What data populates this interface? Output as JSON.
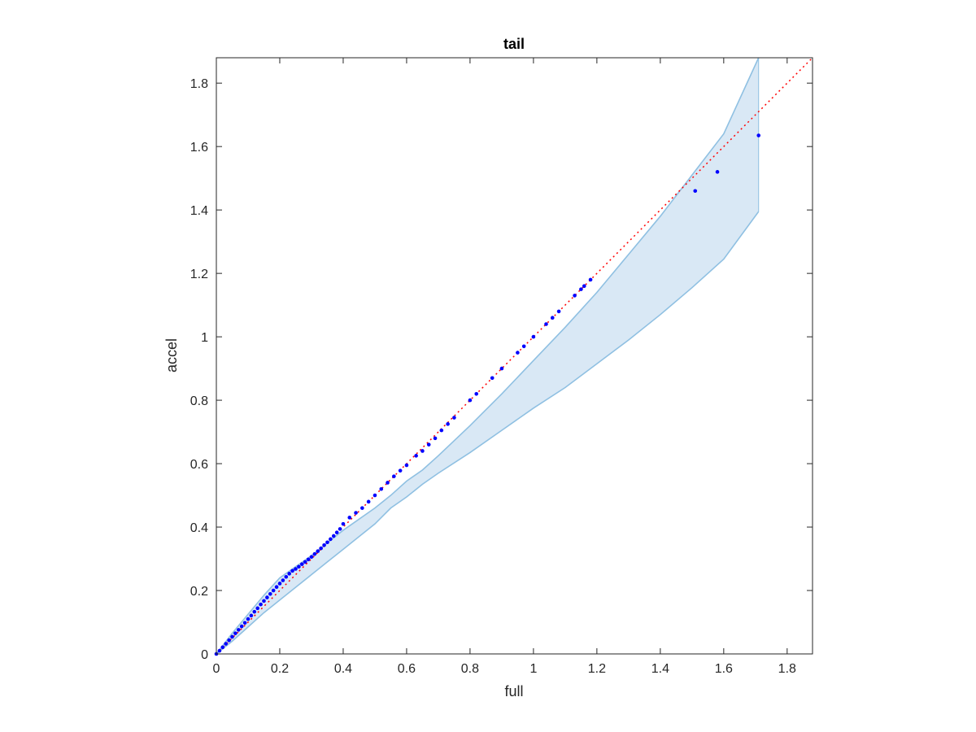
{
  "chart_data": {
    "type": "scatter",
    "title": "tail",
    "xlabel": "full",
    "ylabel": "accel",
    "xlim": [
      0,
      1.88
    ],
    "ylim": [
      0,
      1.88
    ],
    "xticks": [
      0,
      0.2,
      0.4,
      0.6,
      0.8,
      1,
      1.2,
      1.4,
      1.6,
      1.8
    ],
    "yticks": [
      0,
      0.2,
      0.4,
      0.6,
      0.8,
      1,
      1.2,
      1.4,
      1.6,
      1.8
    ],
    "xtick_labels": [
      "0",
      "0.2",
      "0.4",
      "0.6",
      "0.8",
      "1",
      "1.2",
      "1.4",
      "1.6",
      "1.8"
    ],
    "ytick_labels": [
      "0",
      "0.2",
      "0.4",
      "0.6",
      "0.8",
      "1",
      "1.2",
      "1.4",
      "1.6",
      "1.8"
    ],
    "grid": false,
    "reference_line": {
      "x": [
        0,
        1.88
      ],
      "y": [
        0,
        1.88
      ],
      "color": "#ff0000",
      "style": "dotted"
    },
    "confidence_band": {
      "color": "#d9e8f5",
      "edge_color": "#8fc0e2",
      "x": [
        0,
        0.05,
        0.1,
        0.15,
        0.2,
        0.25,
        0.3,
        0.35,
        0.4,
        0.45,
        0.5,
        0.55,
        0.6,
        0.65,
        0.7,
        0.8,
        0.9,
        1.0,
        1.1,
        1.2,
        1.3,
        1.4,
        1.5,
        1.6,
        1.71
      ],
      "upper": [
        0,
        0.065,
        0.125,
        0.185,
        0.24,
        0.275,
        0.31,
        0.35,
        0.39,
        0.425,
        0.46,
        0.5,
        0.545,
        0.58,
        0.625,
        0.72,
        0.82,
        0.925,
        1.03,
        1.14,
        1.26,
        1.38,
        1.51,
        1.64,
        1.88
      ],
      "lower": [
        0,
        0.04,
        0.085,
        0.13,
        0.17,
        0.21,
        0.25,
        0.29,
        0.33,
        0.37,
        0.41,
        0.46,
        0.495,
        0.535,
        0.57,
        0.635,
        0.705,
        0.775,
        0.84,
        0.915,
        0.99,
        1.07,
        1.155,
        1.245,
        1.395
      ]
    },
    "series": [
      {
        "color": "#0000ff",
        "x": [
          0,
          0.01,
          0.02,
          0.03,
          0.04,
          0.05,
          0.06,
          0.07,
          0.08,
          0.09,
          0.1,
          0.11,
          0.12,
          0.13,
          0.14,
          0.15,
          0.16,
          0.17,
          0.18,
          0.19,
          0.2,
          0.21,
          0.22,
          0.23,
          0.24,
          0.25,
          0.26,
          0.27,
          0.28,
          0.29,
          0.3,
          0.31,
          0.32,
          0.33,
          0.34,
          0.35,
          0.36,
          0.37,
          0.38,
          0.39,
          0.4,
          0.42,
          0.44,
          0.46,
          0.48,
          0.5,
          0.52,
          0.54,
          0.56,
          0.58,
          0.6,
          0.63,
          0.65,
          0.67,
          0.69,
          0.71,
          0.73,
          0.75,
          0.8,
          0.82,
          0.87,
          0.9,
          0.95,
          0.97,
          1.0,
          1.04,
          1.06,
          1.08,
          1.13,
          1.15,
          1.16,
          1.18,
          1.51,
          1.58,
          1.71
        ],
        "y": [
          0,
          0.01,
          0.021,
          0.032,
          0.043,
          0.054,
          0.065,
          0.076,
          0.087,
          0.098,
          0.11,
          0.121,
          0.133,
          0.144,
          0.156,
          0.167,
          0.178,
          0.189,
          0.2,
          0.211,
          0.222,
          0.232,
          0.243,
          0.253,
          0.262,
          0.268,
          0.275,
          0.283,
          0.29,
          0.298,
          0.306,
          0.315,
          0.324,
          0.333,
          0.343,
          0.352,
          0.362,
          0.372,
          0.383,
          0.394,
          0.41,
          0.43,
          0.445,
          0.46,
          0.48,
          0.5,
          0.52,
          0.54,
          0.56,
          0.578,
          0.595,
          0.625,
          0.64,
          0.66,
          0.68,
          0.705,
          0.725,
          0.745,
          0.8,
          0.82,
          0.87,
          0.9,
          0.95,
          0.97,
          1.0,
          1.04,
          1.06,
          1.08,
          1.13,
          1.15,
          1.16,
          1.18,
          1.46,
          1.52,
          1.635
        ]
      }
    ]
  }
}
